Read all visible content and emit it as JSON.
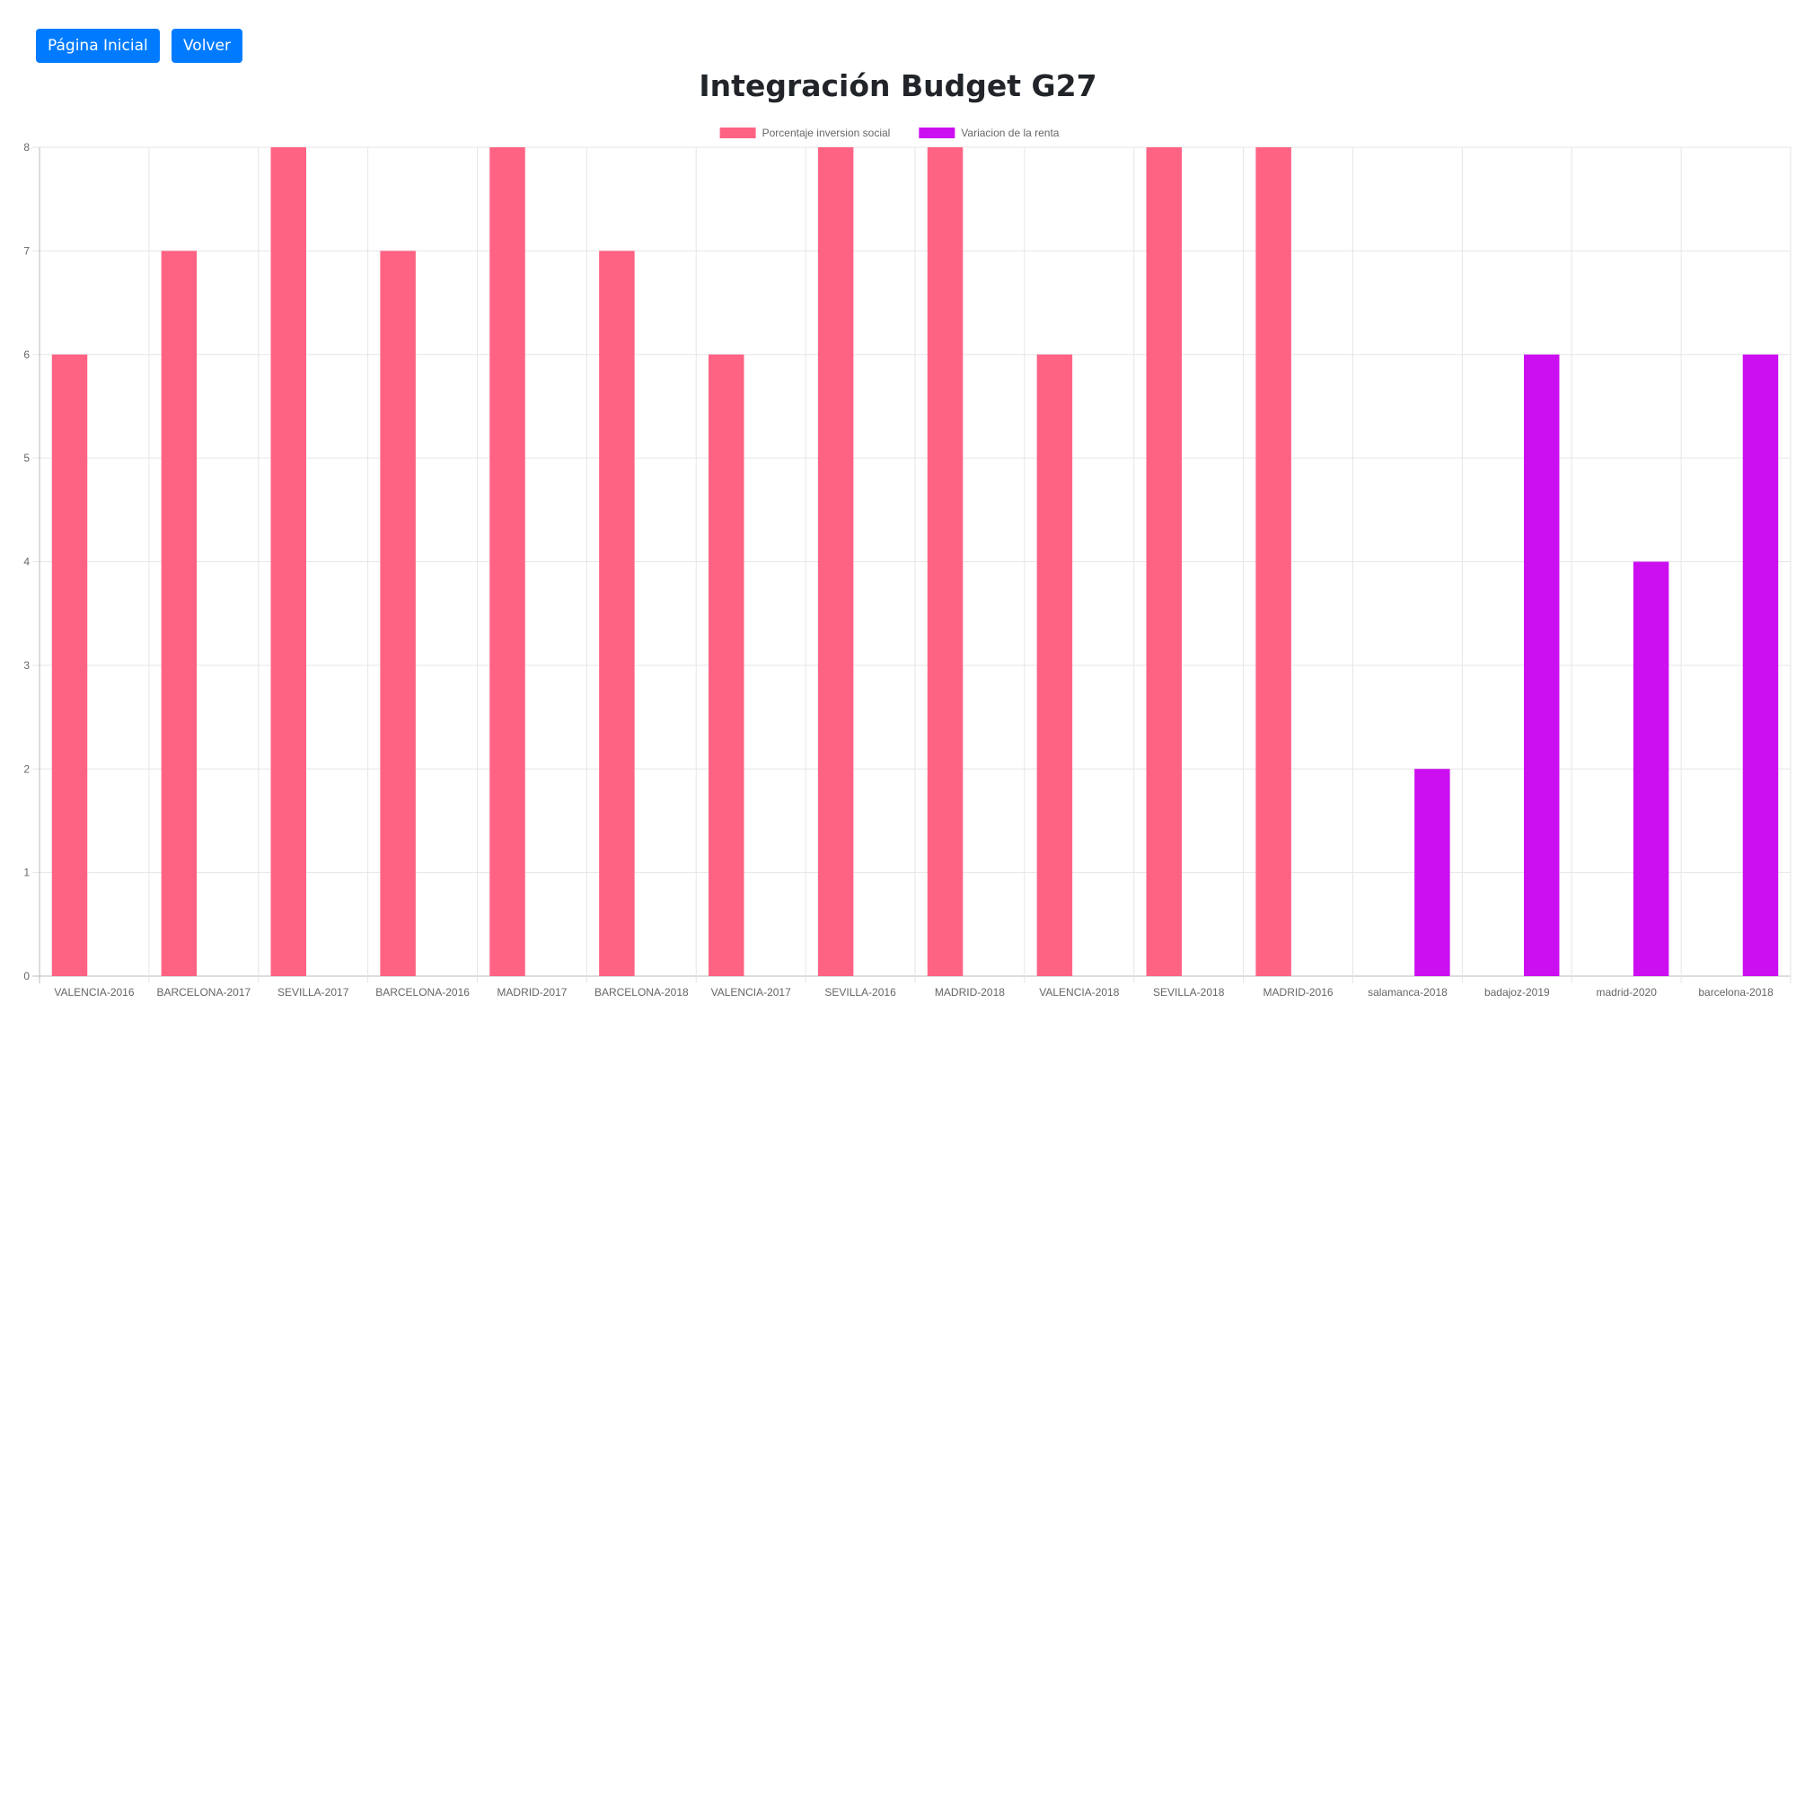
{
  "nav": {
    "home_label": "Página Inicial",
    "back_label": "Volver"
  },
  "page": {
    "title": "Integración Budget G27"
  },
  "chart_data": {
    "type": "bar",
    "categories": [
      "VALENCIA-2016",
      "BARCELONA-2017",
      "SEVILLA-2017",
      "BARCELONA-2016",
      "MADRID-2017",
      "BARCELONA-2018",
      "VALENCIA-2017",
      "SEVILLA-2016",
      "MADRID-2018",
      "VALENCIA-2018",
      "SEVILLA-2018",
      "MADRID-2016",
      "salamanca-2018",
      "badajoz-2019",
      "madrid-2020",
      "barcelona-2018"
    ],
    "series": [
      {
        "name": "Porcentaje inversion social",
        "color": "#ff6384",
        "values": [
          6,
          7,
          8,
          7,
          8,
          7,
          6,
          8,
          8,
          6,
          8,
          8,
          null,
          null,
          null,
          null
        ]
      },
      {
        "name": "Variacion de la renta",
        "color": "#cc0ff0",
        "values": [
          null,
          null,
          null,
          null,
          null,
          null,
          null,
          null,
          null,
          null,
          null,
          null,
          2,
          6,
          4,
          6
        ]
      }
    ],
    "ylim": [
      0,
      8
    ],
    "yticks": [
      0,
      1,
      2,
      3,
      4,
      5,
      6,
      7,
      8
    ],
    "grid": true,
    "legend_position": "top"
  }
}
